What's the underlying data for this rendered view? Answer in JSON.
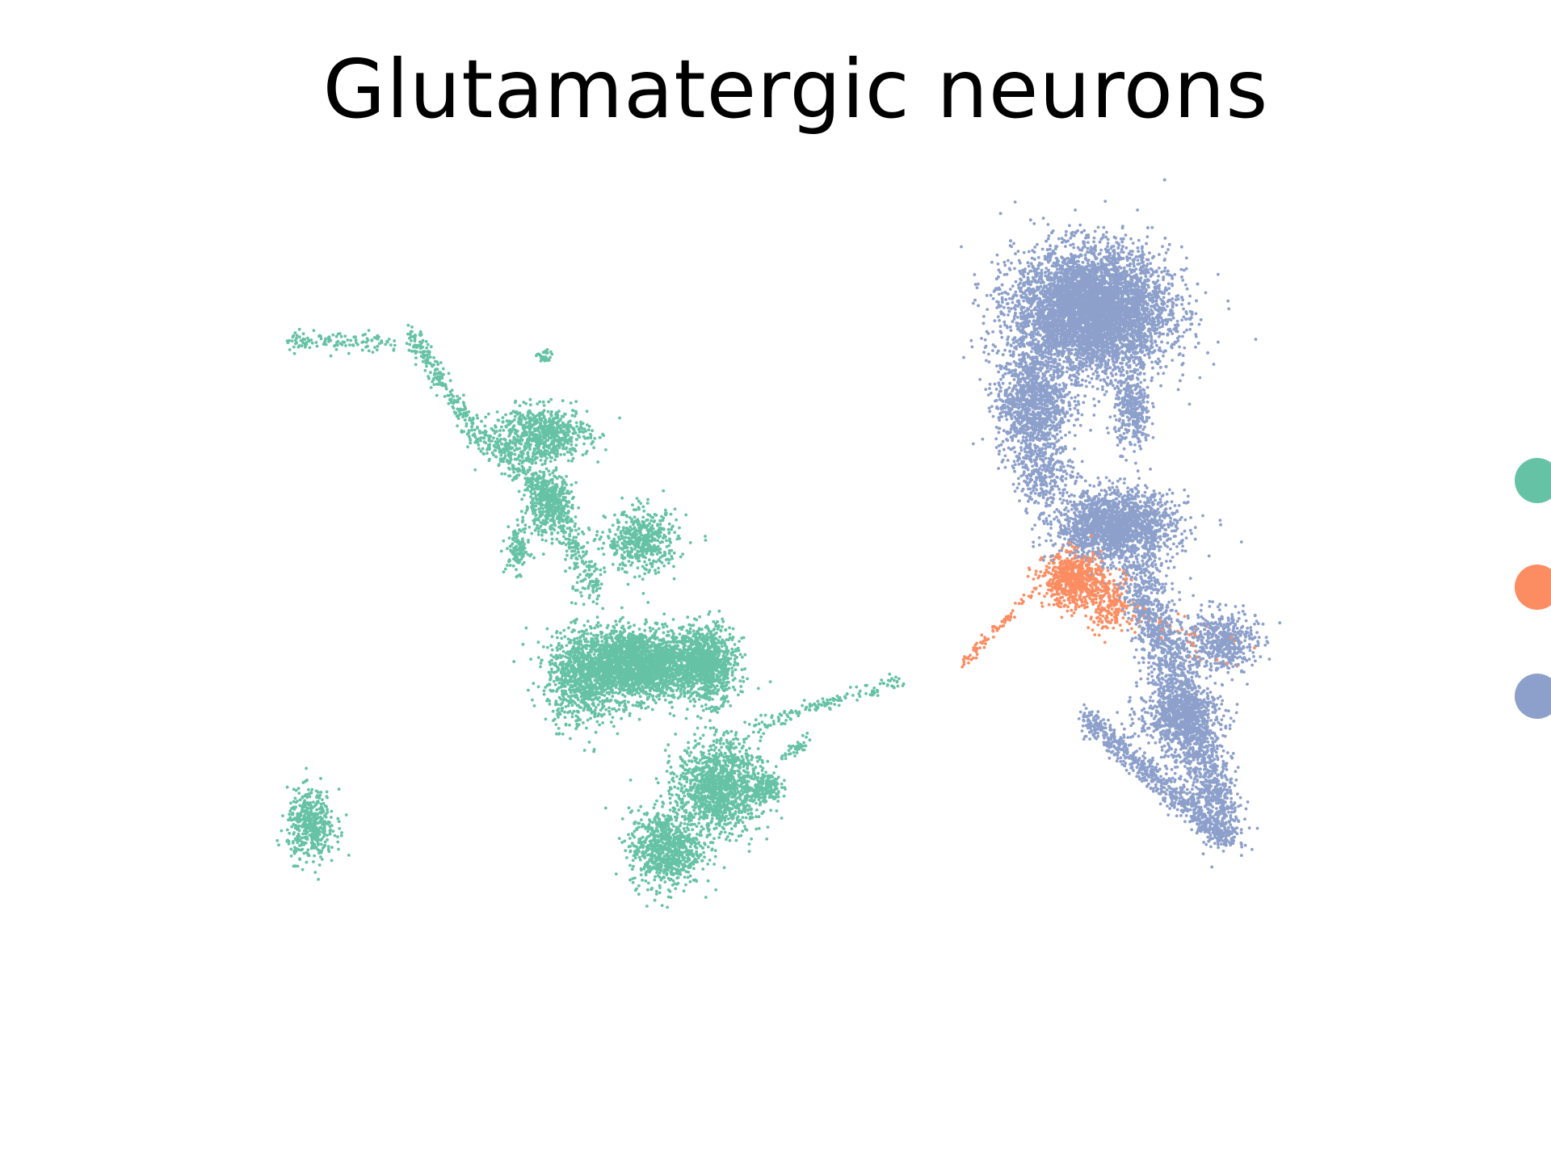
{
  "chart_data": {
    "type": "scatter",
    "title": "Glutamatergic neurons",
    "xlabel": "",
    "ylabel": "",
    "axes_visible": false,
    "grid": false,
    "legend_placement": "right",
    "series": [
      {
        "color": "#66c2a5",
        "clusters": [
          {
            "cx": 0.33,
            "cy": 0.4,
            "rx": 0.11,
            "ry": 0.045,
            "n": 2400
          },
          {
            "cx": 0.24,
            "cy": 0.38,
            "rx": 0.06,
            "ry": 0.06,
            "n": 700
          },
          {
            "cx": 0.45,
            "cy": 0.4,
            "rx": 0.05,
            "ry": 0.05,
            "n": 900
          },
          {
            "cx": 0.18,
            "cy": 0.61,
            "rx": 0.04,
            "ry": 0.04,
            "n": 400
          },
          {
            "cx": 0.34,
            "cy": 0.56,
            "rx": 0.06,
            "ry": 0.04,
            "n": 500
          },
          {
            "cx": 0.17,
            "cy": 0.7,
            "rx": 0.08,
            "ry": 0.035,
            "n": 700
          },
          {
            "cx": 0.47,
            "cy": 0.24,
            "rx": 0.07,
            "ry": 0.06,
            "n": 1300
          },
          {
            "cx": 0.38,
            "cy": 0.16,
            "rx": 0.06,
            "ry": 0.05,
            "n": 800
          },
          {
            "cx": 0.55,
            "cy": 0.24,
            "rx": 0.025,
            "ry": 0.02,
            "n": 150
          },
          {
            "cx": -0.22,
            "cy": 0.19,
            "rx": 0.04,
            "ry": 0.045,
            "n": 450
          },
          {
            "cx": 0.13,
            "cy": 0.55,
            "rx": 0.02,
            "ry": 0.03,
            "n": 120
          },
          {
            "cx": 0.175,
            "cy": 0.8,
            "rx": 0.012,
            "ry": 0.01,
            "n": 30
          }
        ],
        "arms": [
          {
            "x0": -0.26,
            "y0": 0.82,
            "x1": -0.08,
            "y1": 0.82,
            "w": 0.012,
            "n": 120
          },
          {
            "x0": -0.05,
            "y0": 0.83,
            "x1": 0.05,
            "y1": 0.71,
            "w": 0.015,
            "n": 200
          },
          {
            "x0": 0.05,
            "y0": 0.71,
            "x1": 0.19,
            "y1": 0.62,
            "w": 0.02,
            "n": 260
          },
          {
            "x0": 0.19,
            "y0": 0.62,
            "x1": 0.26,
            "y1": 0.49,
            "w": 0.022,
            "n": 260
          },
          {
            "x0": 0.53,
            "y0": 0.32,
            "x1": 0.78,
            "y1": 0.38,
            "w": 0.01,
            "n": 140
          },
          {
            "x0": 0.58,
            "y0": 0.28,
            "x1": 0.62,
            "y1": 0.3,
            "w": 0.008,
            "n": 40
          }
        ]
      },
      {
        "color": "#fc8d62",
        "clusters": [
          {
            "cx": 1.07,
            "cy": 0.51,
            "rx": 0.05,
            "ry": 0.035,
            "n": 650
          },
          {
            "cx": 1.13,
            "cy": 0.48,
            "rx": 0.04,
            "ry": 0.035,
            "n": 200
          }
        ],
        "arms": [
          {
            "x0": 0.88,
            "y0": 0.4,
            "x1": 1.01,
            "y1": 0.5,
            "w": 0.007,
            "n": 80
          },
          {
            "x0": 1.13,
            "y0": 0.46,
            "x1": 1.35,
            "y1": 0.42,
            "w": 0.03,
            "n": 60
          }
        ]
      },
      {
        "color": "#8da0cb",
        "clusters": [
          {
            "cx": 1.1,
            "cy": 0.86,
            "rx": 0.13,
            "ry": 0.08,
            "n": 6500
          },
          {
            "cx": 1.0,
            "cy": 0.74,
            "rx": 0.06,
            "ry": 0.07,
            "n": 1100
          },
          {
            "cx": 1.17,
            "cy": 0.73,
            "rx": 0.03,
            "ry": 0.05,
            "n": 350
          },
          {
            "cx": 1.14,
            "cy": 0.58,
            "rx": 0.1,
            "ry": 0.045,
            "n": 1900
          },
          {
            "cx": 1.02,
            "cy": 0.65,
            "rx": 0.05,
            "ry": 0.04,
            "n": 300
          },
          {
            "cx": 1.32,
            "cy": 0.43,
            "rx": 0.06,
            "ry": 0.04,
            "n": 500
          },
          {
            "cx": 1.25,
            "cy": 0.33,
            "rx": 0.07,
            "ry": 0.04,
            "n": 600
          }
        ],
        "arms": [
          {
            "x0": 1.18,
            "y0": 0.52,
            "x1": 1.33,
            "y1": 0.18,
            "w": 0.04,
            "n": 1800
          },
          {
            "x0": 1.09,
            "y0": 0.33,
            "x1": 1.33,
            "y1": 0.17,
            "w": 0.018,
            "n": 650
          }
        ]
      }
    ],
    "xlim": [
      -0.35,
      1.55
    ],
    "ylim": [
      -0.05,
      1.05
    ]
  }
}
